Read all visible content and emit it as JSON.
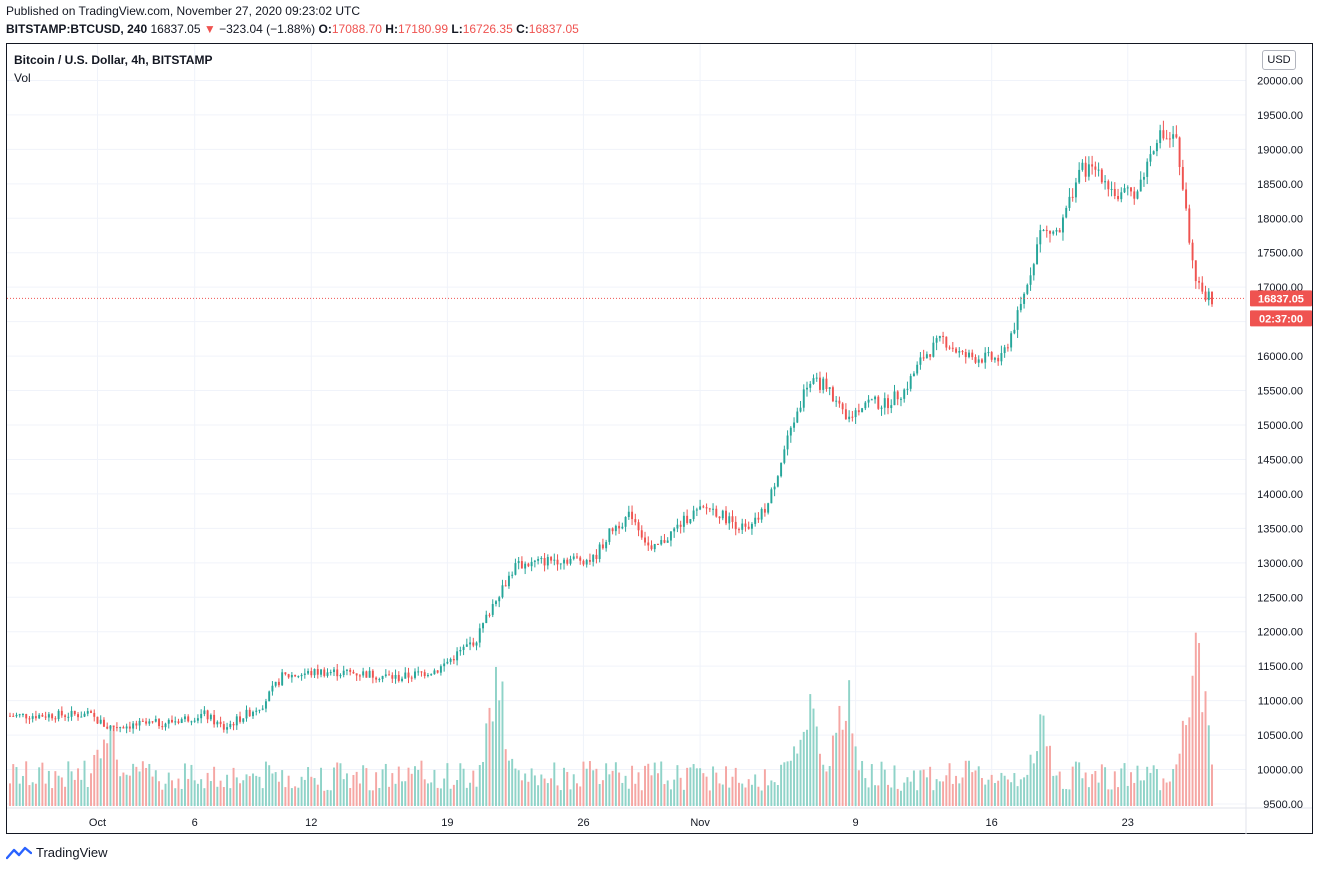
{
  "header": {
    "published": "Published on TradingView.com, November 27, 2020 09:23:02 UTC",
    "symbol": "BITSTAMP:BTCUSD, 240",
    "last": "16837.05",
    "change": "−323.04 (−1.88%)",
    "open_label": "O:",
    "open": "17088.70",
    "high_label": "H:",
    "high": "17180.99",
    "low_label": "L:",
    "low": "16726.35",
    "close_label": "C:",
    "close": "16837.05"
  },
  "legend": {
    "title": "Bitcoin / U.S. Dollar, 4h, BITSTAMP",
    "volume": "Vol"
  },
  "price_axis": {
    "currency": "USD",
    "ticks": [
      "20000.00",
      "19500.00",
      "19000.00",
      "18500.00",
      "18000.00",
      "17500.00",
      "17000.00",
      "16500.00",
      "16000.00",
      "15500.00",
      "15000.00",
      "14500.00",
      "14000.00",
      "13500.00",
      "13000.00",
      "12500.00",
      "12000.00",
      "11500.00",
      "11000.00",
      "10500.00",
      "10000.00",
      "9500.00"
    ],
    "last_price_label": "16837.05",
    "countdown_label": "02:37:00"
  },
  "time_axis": {
    "labels": [
      "Oct",
      "6",
      "12",
      "19",
      "26",
      "Nov",
      "9",
      "16",
      "23"
    ]
  },
  "footer": {
    "brand": "TradingView",
    "logo_icon": "tradingview-logo-icon"
  },
  "colors": {
    "up": "#26a69a",
    "down": "#ef5350",
    "up_vol": "#8fd3c8",
    "down_vol": "#f5a6a3",
    "grid": "#f0f3fa"
  },
  "chart_data": {
    "type": "candlestick",
    "title": "Bitcoin / U.S. Dollar, 4h, BITSTAMP",
    "interval": "4h",
    "ylim": [
      9500,
      20500
    ],
    "current_price": 16837.05,
    "price_keypoints": [
      {
        "date": "2020-09-27",
        "price": 10780
      },
      {
        "date": "2020-09-30",
        "price": 10800
      },
      {
        "date": "2020-10-01",
        "price": 10620
      },
      {
        "date": "2020-10-04",
        "price": 10680
      },
      {
        "date": "2020-10-06",
        "price": 10800
      },
      {
        "date": "2020-10-07",
        "price": 10600
      },
      {
        "date": "2020-10-09",
        "price": 10950
      },
      {
        "date": "2020-10-10",
        "price": 11350
      },
      {
        "date": "2020-10-12",
        "price": 11420
      },
      {
        "date": "2020-10-14",
        "price": 11400
      },
      {
        "date": "2020-10-16",
        "price": 11330
      },
      {
        "date": "2020-10-18",
        "price": 11450
      },
      {
        "date": "2020-10-20",
        "price": 11900
      },
      {
        "date": "2020-10-21",
        "price": 12500
      },
      {
        "date": "2020-10-22",
        "price": 12950
      },
      {
        "date": "2020-10-24",
        "price": 13050
      },
      {
        "date": "2020-10-26",
        "price": 13050
      },
      {
        "date": "2020-10-27",
        "price": 13500
      },
      {
        "date": "2020-10-28",
        "price": 13700
      },
      {
        "date": "2020-10-29",
        "price": 13150
      },
      {
        "date": "2020-10-31",
        "price": 13700
      },
      {
        "date": "2020-11-01",
        "price": 13800
      },
      {
        "date": "2020-11-03",
        "price": 13450
      },
      {
        "date": "2020-11-04",
        "price": 13850
      },
      {
        "date": "2020-11-05",
        "price": 14800
      },
      {
        "date": "2020-11-06",
        "price": 15600
      },
      {
        "date": "2020-11-07",
        "price": 15600
      },
      {
        "date": "2020-11-08",
        "price": 15050
      },
      {
        "date": "2020-11-09",
        "price": 15350
      },
      {
        "date": "2020-11-10",
        "price": 15300
      },
      {
        "date": "2020-11-11",
        "price": 15500
      },
      {
        "date": "2020-11-12",
        "price": 16000
      },
      {
        "date": "2020-11-13",
        "price": 16250
      },
      {
        "date": "2020-11-14",
        "price": 16000
      },
      {
        "date": "2020-11-16",
        "price": 15950
      },
      {
        "date": "2020-11-17",
        "price": 16700
      },
      {
        "date": "2020-11-18",
        "price": 17800
      },
      {
        "date": "2020-11-19",
        "price": 17800
      },
      {
        "date": "2020-11-20",
        "price": 18700
      },
      {
        "date": "2020-11-21",
        "price": 18700
      },
      {
        "date": "2020-11-22",
        "price": 18300
      },
      {
        "date": "2020-11-23",
        "price": 18400
      },
      {
        "date": "2020-11-24",
        "price": 19200
      },
      {
        "date": "2020-11-25",
        "price": 19150
      },
      {
        "date": "2020-11-26",
        "price": 17000
      },
      {
        "date": "2020-11-27",
        "price": 16837
      }
    ],
    "volume_peaks": [
      {
        "date": "2020-10-01",
        "volume_level": 0.33
      },
      {
        "date": "2020-10-21",
        "volume_level": 0.46
      },
      {
        "date": "2020-11-06",
        "volume_level": 0.4
      },
      {
        "date": "2020-11-08",
        "volume_level": 0.42
      },
      {
        "date": "2020-11-18",
        "volume_level": 0.3
      },
      {
        "date": "2020-11-26",
        "volume_level": 0.52
      }
    ]
  }
}
